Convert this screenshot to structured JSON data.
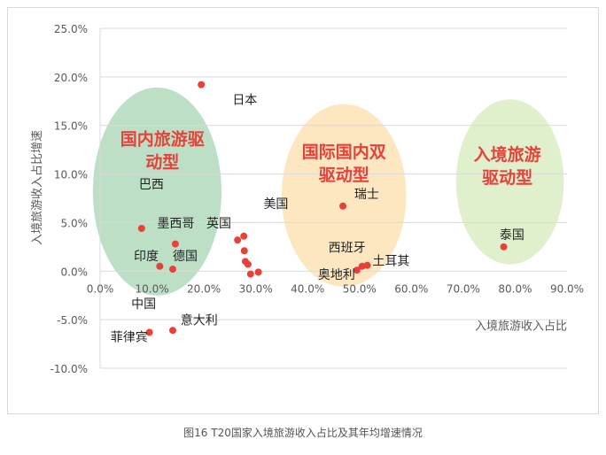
{
  "caption": "图16 T20国家入境旅游收入占比及其年均增速情况",
  "chart_data": {
    "type": "scatter",
    "title": "",
    "xlabel": "入境旅游收入占比",
    "ylabel": "入境旅游收入占比增速",
    "xlim": [
      0,
      0.9
    ],
    "ylim": [
      -0.1,
      0.25
    ],
    "x_ticks": [
      "0.0%",
      "10.0%",
      "20.0%",
      "30.0%",
      "40.0%",
      "50.0%",
      "60.0%",
      "70.0%",
      "80.0%",
      "90.0%"
    ],
    "y_ticks": [
      "25.0%",
      "20.0%",
      "15.0%",
      "10.0%",
      "5.0%",
      "0.0%",
      "-5.0%",
      "-10.0%"
    ],
    "grid": "horizontal",
    "point_color": "#e8413a",
    "points": [
      {
        "x": 0.195,
        "y": 0.192
      },
      {
        "x": 0.08,
        "y": 0.044
      },
      {
        "x": 0.145,
        "y": 0.028
      },
      {
        "x": 0.115,
        "y": 0.005
      },
      {
        "x": 0.14,
        "y": 0.002
      },
      {
        "x": 0.265,
        "y": 0.032
      },
      {
        "x": 0.277,
        "y": 0.036
      },
      {
        "x": 0.278,
        "y": 0.021
      },
      {
        "x": 0.28,
        "y": 0.01
      },
      {
        "x": 0.285,
        "y": 0.007
      },
      {
        "x": 0.29,
        "y": -0.003
      },
      {
        "x": 0.305,
        "y": -0.001
      },
      {
        "x": 0.468,
        "y": 0.067
      },
      {
        "x": 0.495,
        "y": 0.001
      },
      {
        "x": 0.505,
        "y": 0.005
      },
      {
        "x": 0.515,
        "y": 0.006
      },
      {
        "x": 0.778,
        "y": 0.025
      },
      {
        "x": 0.095,
        "y": -0.063
      },
      {
        "x": 0.14,
        "y": -0.061
      }
    ],
    "point_labels": [
      {
        "text": "日本",
        "x": 0.255,
        "y": 0.172
      },
      {
        "text": "巴西",
        "x": 0.075,
        "y": 0.085
      },
      {
        "text": "墨西哥",
        "x": 0.11,
        "y": 0.045
      },
      {
        "text": "英国",
        "x": 0.205,
        "y": 0.045
      },
      {
        "text": "美国",
        "x": 0.315,
        "y": 0.065
      },
      {
        "text": "印度",
        "x": 0.065,
        "y": 0.011
      },
      {
        "text": "德国",
        "x": 0.14,
        "y": 0.011
      },
      {
        "text": "瑞士",
        "x": 0.49,
        "y": 0.075
      },
      {
        "text": "西班牙",
        "x": 0.44,
        "y": 0.02
      },
      {
        "text": "土耳其",
        "x": 0.525,
        "y": 0.006
      },
      {
        "text": "奥地利",
        "x": 0.42,
        "y": -0.008
      },
      {
        "text": "泰国",
        "x": 0.77,
        "y": 0.033
      },
      {
        "text": "中国",
        "x": 0.06,
        "y": -0.038
      },
      {
        "text": "意大利",
        "x": 0.155,
        "y": -0.055
      },
      {
        "text": "菲律宾",
        "x": 0.02,
        "y": -0.072
      }
    ],
    "clusters": [
      {
        "title_lines": [
          "国内旅游驱",
          "动型"
        ],
        "fill": "#2e9c4f",
        "cx": 0.11,
        "cy": 0.082,
        "rx": 0.124,
        "ry": 0.107,
        "tx": 0.12,
        "ty": 0.13
      },
      {
        "title_lines": [
          "国际国内双",
          "驱动型"
        ],
        "fill": "#f5b53d",
        "cx": 0.47,
        "cy": 0.078,
        "rx": 0.12,
        "ry": 0.094,
        "tx": 0.47,
        "ty": 0.117
      },
      {
        "title_lines": [
          "入境旅游",
          "驱动型"
        ],
        "fill": "#9fcf63",
        "cx": 0.79,
        "cy": 0.092,
        "rx": 0.104,
        "ry": 0.085,
        "tx": 0.785,
        "ty": 0.114
      }
    ],
    "title_color": "#e8413a"
  }
}
